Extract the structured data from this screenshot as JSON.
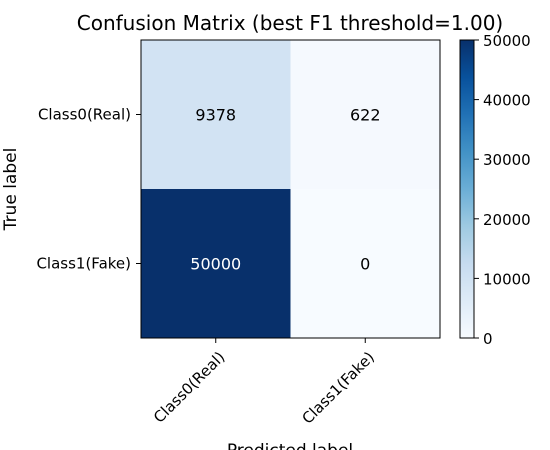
{
  "chart_data": {
    "type": "heatmap",
    "title": "Confusion Matrix (best F1 threshold=1.00)",
    "xlabel": "Predicted label",
    "ylabel": "True label",
    "x_categories": [
      "Class0(Real)",
      "Class1(Fake)"
    ],
    "y_categories": [
      "Class0(Real)",
      "Class1(Fake)"
    ],
    "values": [
      [
        9378,
        622
      ],
      [
        50000,
        0
      ]
    ],
    "colormap": "Blues",
    "value_range": [
      0,
      50000
    ],
    "colorbar_ticks": [
      "0",
      "10000",
      "20000",
      "30000",
      "40000",
      "50000"
    ],
    "grid": false
  }
}
